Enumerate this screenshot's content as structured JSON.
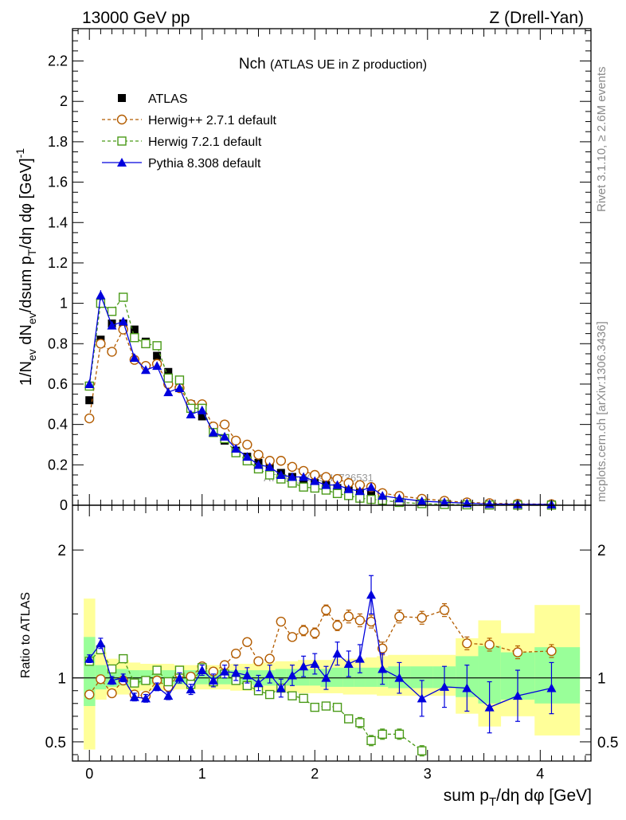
{
  "header": {
    "left": "13000 GeV pp",
    "right": "Z (Drell-Yan)"
  },
  "side_text": {
    "rivet": "Rivet 3.1.10, ≥ 2.6M events",
    "mcplots": "mcplots.cern.ch [arXiv:1306.3436]"
  },
  "watermark": "ATLAS_2019_I1736531",
  "chart_data": [
    {
      "type": "scatter",
      "title": "Nch",
      "subtitle": "(ATLAS UE in Z production)",
      "ylabel": "1/N_ev dN_ev/dsum p_T/dη dφ [GeV]^-1",
      "xlim": [
        -0.15,
        4.45
      ],
      "ylim": [
        0,
        2.36
      ],
      "yticks": [
        0,
        0.2,
        0.4,
        0.6,
        0.8,
        1,
        1.2,
        1.4,
        1.6,
        1.8,
        2,
        2.2
      ],
      "ytick_labels": [
        "0",
        "0.2",
        "0.4",
        "0.6",
        "0.8",
        "1",
        "1.2",
        "1.4",
        "1.6",
        "1.8",
        "2",
        "2.2"
      ],
      "x": [
        0,
        0.1,
        0.2,
        0.3,
        0.4,
        0.5,
        0.6,
        0.7,
        0.8,
        0.9,
        1.0,
        1.1,
        1.2,
        1.3,
        1.4,
        1.5,
        1.6,
        1.7,
        1.8,
        1.9,
        2.0,
        2.1,
        2.2,
        2.3,
        2.4,
        2.5,
        2.6,
        2.75,
        2.95,
        3.15,
        3.35,
        3.55,
        3.8,
        4.1
      ],
      "legend": [
        "ATLAS",
        "Herwig++ 2.7.1 default",
        "Herwig 7.2.1 default",
        "Pythia 8.308 default"
      ],
      "series": [
        {
          "name": "ATLAS",
          "color": "#000000",
          "marker": "square-filled",
          "values": [
            0.52,
            0.82,
            0.9,
            0.9,
            0.87,
            0.81,
            0.74,
            0.66,
            0.58,
            0.5,
            0.44,
            0.37,
            0.32,
            0.27,
            0.24,
            0.21,
            0.19,
            0.16,
            0.14,
            0.12,
            0.11,
            0.1,
            0.085,
            0.073,
            0.062,
            0.052,
            0.044,
            0.032,
            0.022,
            0.015,
            0.011,
            0.008,
            0.006,
            0.004
          ]
        },
        {
          "name": "Herwig++ 2.7.1 default",
          "color": "#b35c00",
          "marker": "circle-open",
          "dash": "dashed",
          "values": [
            0.43,
            0.8,
            0.76,
            0.87,
            0.72,
            0.69,
            0.7,
            0.6,
            0.58,
            0.5,
            0.5,
            0.39,
            0.4,
            0.32,
            0.3,
            0.25,
            0.22,
            0.22,
            0.19,
            0.17,
            0.15,
            0.14,
            0.13,
            0.11,
            0.1,
            0.09,
            0.06,
            0.046,
            0.032,
            0.022,
            0.014,
            0.01,
            0.007,
            0.005
          ]
        },
        {
          "name": "Herwig 7.2.1 default",
          "color": "#4a9a18",
          "marker": "square-open",
          "dash": "dashed",
          "values": [
            0.59,
            1.0,
            0.96,
            1.03,
            0.83,
            0.8,
            0.79,
            0.63,
            0.62,
            0.48,
            0.48,
            0.36,
            0.33,
            0.26,
            0.22,
            0.18,
            0.15,
            0.13,
            0.11,
            0.09,
            0.085,
            0.075,
            0.058,
            0.048,
            0.035,
            0.029,
            0.025,
            0.014,
            0.008,
            0.004,
            0.002,
            0.001,
            0.0005,
            0.0002
          ]
        },
        {
          "name": "Pythia 8.308 default",
          "color": "#0000dd",
          "marker": "triangle-filled",
          "dash": "solid",
          "values": [
            0.6,
            1.04,
            0.89,
            0.91,
            0.73,
            0.67,
            0.69,
            0.56,
            0.58,
            0.45,
            0.47,
            0.36,
            0.34,
            0.28,
            0.24,
            0.2,
            0.19,
            0.15,
            0.14,
            0.14,
            0.12,
            0.1,
            0.1,
            0.08,
            0.07,
            0.09,
            0.047,
            0.034,
            0.02,
            0.015,
            0.01,
            0.006,
            0.005,
            0.004
          ]
        }
      ]
    },
    {
      "type": "scatter",
      "ylabel": "Ratio to ATLAS",
      "xlabel": "sum p_T/dη dφ [GeV]",
      "xlim": [
        -0.15,
        4.45
      ],
      "ylim": [
        0.35,
        2.35
      ],
      "yticks": [
        0.5,
        1,
        2
      ],
      "ytick_labels": [
        "0.5",
        "1",
        "2"
      ],
      "xticks": [
        0,
        1,
        2,
        3,
        4
      ],
      "xtick_labels": [
        "0",
        "1",
        "2",
        "3",
        "4"
      ],
      "bin_edges": [
        -0.05,
        0.05,
        0.15,
        0.25,
        0.35,
        0.45,
        0.55,
        0.65,
        0.75,
        0.85,
        0.95,
        1.05,
        1.15,
        1.25,
        1.35,
        1.45,
        1.55,
        1.65,
        1.75,
        1.85,
        1.95,
        2.05,
        2.15,
        2.25,
        2.35,
        2.45,
        2.55,
        2.65,
        2.85,
        3.05,
        3.25,
        3.45,
        3.65,
        3.95,
        4.35
      ],
      "band_yellow_low": [
        0.44,
        0.83,
        0.87,
        0.87,
        0.89,
        0.9,
        0.9,
        0.9,
        0.91,
        0.91,
        0.91,
        0.91,
        0.91,
        0.9,
        0.9,
        0.9,
        0.9,
        0.89,
        0.89,
        0.88,
        0.88,
        0.88,
        0.88,
        0.87,
        0.87,
        0.87,
        0.86,
        0.86,
        0.86,
        0.86,
        0.72,
        0.62,
        0.7,
        0.55
      ],
      "band_yellow_high": [
        1.62,
        1.2,
        1.15,
        1.14,
        1.12,
        1.11,
        1.11,
        1.11,
        1.1,
        1.1,
        1.1,
        1.1,
        1.1,
        1.11,
        1.11,
        1.12,
        1.12,
        1.13,
        1.13,
        1.14,
        1.14,
        1.14,
        1.15,
        1.15,
        1.15,
        1.16,
        1.17,
        1.18,
        1.18,
        1.18,
        1.31,
        1.45,
        1.35,
        1.57
      ],
      "band_green_low": [
        0.78,
        0.91,
        0.93,
        0.94,
        0.95,
        0.95,
        0.95,
        0.95,
        0.95,
        0.95,
        0.95,
        0.95,
        0.95,
        0.95,
        0.95,
        0.94,
        0.94,
        0.94,
        0.94,
        0.94,
        0.94,
        0.93,
        0.93,
        0.93,
        0.93,
        0.93,
        0.93,
        0.92,
        0.92,
        0.92,
        0.85,
        0.8,
        0.83,
        0.8
      ],
      "band_green_high": [
        1.32,
        1.1,
        1.07,
        1.07,
        1.06,
        1.06,
        1.06,
        1.06,
        1.06,
        1.06,
        1.06,
        1.06,
        1.06,
        1.06,
        1.06,
        1.06,
        1.06,
        1.07,
        1.07,
        1.07,
        1.07,
        1.07,
        1.08,
        1.08,
        1.08,
        1.08,
        1.08,
        1.09,
        1.09,
        1.09,
        1.17,
        1.25,
        1.2,
        1.24
      ],
      "series": [
        {
          "name": "Herwig++ 2.7.1 default",
          "color": "#b35c00",
          "marker": "circle-open",
          "dash": "dashed",
          "x": [
            0,
            0.1,
            0.2,
            0.3,
            0.4,
            0.5,
            0.6,
            0.7,
            0.8,
            0.9,
            1.0,
            1.1,
            1.2,
            1.3,
            1.4,
            1.5,
            1.6,
            1.7,
            1.8,
            1.9,
            2.0,
            2.1,
            2.2,
            2.3,
            2.4,
            2.5,
            2.6,
            2.75,
            2.95,
            3.15,
            3.35,
            3.55,
            3.8,
            4.1
          ],
          "values": [
            0.87,
            0.99,
            0.88,
            0.98,
            0.87,
            0.86,
            0.98,
            0.93,
            1.03,
            1.01,
            1.09,
            1.05,
            1.1,
            1.19,
            1.28,
            1.13,
            1.15,
            1.44,
            1.32,
            1.37,
            1.35,
            1.53,
            1.41,
            1.48,
            1.45,
            1.44,
            1.23,
            1.48,
            1.47,
            1.53,
            1.27,
            1.26,
            1.2,
            1.21
          ],
          "errors": [
            0.02,
            0.02,
            0.02,
            0.02,
            0.02,
            0.02,
            0.02,
            0.02,
            0.02,
            0.02,
            0.02,
            0.02,
            0.02,
            0.03,
            0.03,
            0.03,
            0.03,
            0.03,
            0.03,
            0.04,
            0.04,
            0.04,
            0.04,
            0.05,
            0.05,
            0.05,
            0.05,
            0.05,
            0.05,
            0.05,
            0.05,
            0.05,
            0.05,
            0.05
          ]
        },
        {
          "name": "Herwig 7.2.1 default",
          "color": "#4a9a18",
          "marker": "square-open",
          "dash": "dashed",
          "x": [
            0,
            0.1,
            0.2,
            0.3,
            0.4,
            0.5,
            0.6,
            0.7,
            0.8,
            0.9,
            1.0,
            1.1,
            1.2,
            1.3,
            1.4,
            1.5,
            1.6,
            1.7,
            1.8,
            1.9,
            2.0,
            2.1,
            2.2,
            2.3,
            2.4,
            2.5,
            2.6,
            2.75,
            2.95
          ],
          "values": [
            1.13,
            1.22,
            1.07,
            1.15,
            0.96,
            0.98,
            1.06,
            0.97,
            1.06,
            0.95,
            1.08,
            0.97,
            1.03,
            0.98,
            0.94,
            0.9,
            0.87,
            0.92,
            0.86,
            0.84,
            0.77,
            0.78,
            0.77,
            0.68,
            0.65,
            0.51,
            0.56,
            0.56,
            0.43
          ],
          "errors": [
            0.02,
            0.02,
            0.02,
            0.02,
            0.02,
            0.02,
            0.02,
            0.02,
            0.02,
            0.02,
            0.02,
            0.02,
            0.02,
            0.03,
            0.03,
            0.03,
            0.03,
            0.03,
            0.03,
            0.03,
            0.03,
            0.03,
            0.03,
            0.03,
            0.04,
            0.04,
            0.04,
            0.04,
            0.04
          ]
        },
        {
          "name": "Pythia 8.308 default",
          "color": "#0000dd",
          "marker": "triangle-filled",
          "dash": "solid",
          "x": [
            0,
            0.1,
            0.2,
            0.3,
            0.4,
            0.5,
            0.6,
            0.7,
            0.8,
            0.9,
            1.0,
            1.1,
            1.2,
            1.3,
            1.4,
            1.5,
            1.6,
            1.7,
            1.8,
            1.9,
            2.0,
            2.1,
            2.2,
            2.3,
            2.4,
            2.5,
            2.6,
            2.75,
            2.95,
            3.15,
            3.35,
            3.55,
            3.8,
            4.1
          ],
          "values": [
            1.15,
            1.27,
            0.98,
            1.0,
            0.85,
            0.84,
            0.93,
            0.86,
            1.0,
            0.91,
            1.06,
            0.98,
            1.05,
            1.04,
            1.02,
            0.96,
            1.03,
            0.92,
            1.02,
            1.09,
            1.11,
            1.0,
            1.19,
            1.11,
            1.15,
            1.65,
            1.07,
            1.0,
            0.84,
            0.93,
            0.92,
            0.77,
            0.86,
            0.92
          ],
          "errors": [
            0.03,
            0.04,
            0.03,
            0.03,
            0.03,
            0.03,
            0.03,
            0.03,
            0.04,
            0.04,
            0.04,
            0.05,
            0.05,
            0.06,
            0.06,
            0.06,
            0.07,
            0.07,
            0.08,
            0.08,
            0.08,
            0.09,
            0.09,
            0.1,
            0.11,
            0.15,
            0.12,
            0.12,
            0.14,
            0.16,
            0.18,
            0.2,
            0.2,
            0.2
          ]
        }
      ]
    }
  ]
}
